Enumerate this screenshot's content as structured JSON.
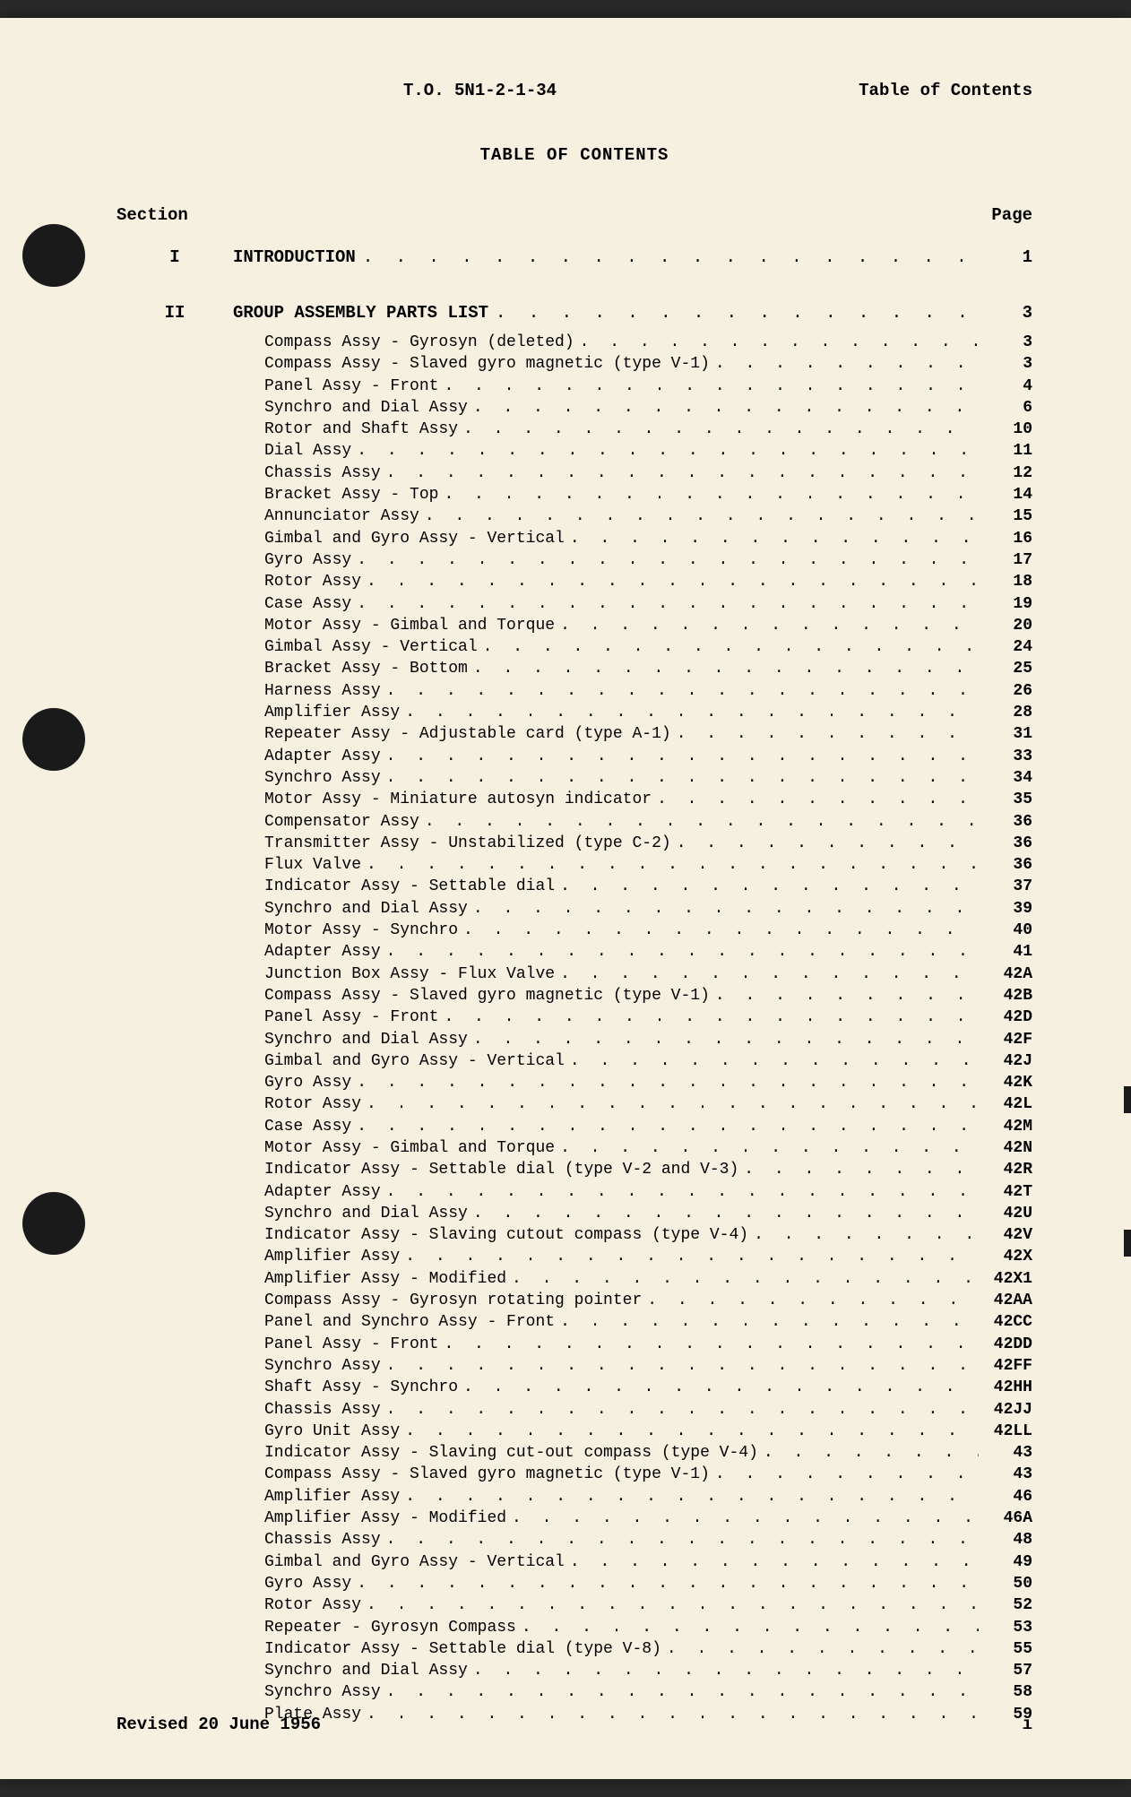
{
  "header": {
    "doc_number": "T.O. 5N1-2-1-34",
    "right_label": "Table of Contents"
  },
  "title": "TABLE OF CONTENTS",
  "column_headers": {
    "left": "Section",
    "right": "Page"
  },
  "sections": [
    {
      "num": "I",
      "title": "INTRODUCTION",
      "page": "1",
      "entries": []
    },
    {
      "num": "II",
      "title": "GROUP ASSEMBLY PARTS LIST",
      "page": "3",
      "entries": [
        {
          "title": "Compass Assy - Gyrosyn (deleted)",
          "page": "3"
        },
        {
          "title": "Compass Assy - Slaved gyro magnetic (type V-1)",
          "page": "3"
        },
        {
          "title": "Panel Assy - Front",
          "page": "4"
        },
        {
          "title": "Synchro and Dial Assy",
          "page": "6"
        },
        {
          "title": "Rotor and Shaft Assy",
          "page": "10"
        },
        {
          "title": "Dial Assy",
          "page": "11"
        },
        {
          "title": "Chassis Assy",
          "page": "12"
        },
        {
          "title": "Bracket Assy - Top",
          "page": "14"
        },
        {
          "title": "Annunciator Assy",
          "page": "15"
        },
        {
          "title": "Gimbal and Gyro Assy - Vertical",
          "page": "16"
        },
        {
          "title": "Gyro Assy",
          "page": "17"
        },
        {
          "title": "Rotor Assy",
          "page": "18"
        },
        {
          "title": "Case Assy",
          "page": "19"
        },
        {
          "title": "Motor Assy - Gimbal and Torque",
          "page": "20"
        },
        {
          "title": "Gimbal Assy - Vertical",
          "page": "24"
        },
        {
          "title": "Bracket Assy - Bottom",
          "page": "25"
        },
        {
          "title": "Harness Assy",
          "page": "26"
        },
        {
          "title": "Amplifier Assy",
          "page": "28"
        },
        {
          "title": "Repeater Assy - Adjustable card (type A-1)",
          "page": "31"
        },
        {
          "title": "Adapter Assy",
          "page": "33"
        },
        {
          "title": "Synchro Assy",
          "page": "34"
        },
        {
          "title": "Motor Assy - Miniature autosyn indicator",
          "page": "35"
        },
        {
          "title": "Compensator Assy",
          "page": "36"
        },
        {
          "title": "Transmitter Assy - Unstabilized (type C-2)",
          "page": "36"
        },
        {
          "title": "Flux Valve",
          "page": "36"
        },
        {
          "title": "Indicator Assy - Settable dial",
          "page": "37"
        },
        {
          "title": "Synchro and Dial Assy",
          "page": "39"
        },
        {
          "title": "Motor Assy - Synchro",
          "page": "40"
        },
        {
          "title": "Adapter Assy",
          "page": "41"
        },
        {
          "title": "Junction Box Assy - Flux Valve",
          "page": "42A"
        },
        {
          "title": "Compass Assy - Slaved gyro magnetic (type V-1)",
          "page": "42B"
        },
        {
          "title": "Panel Assy - Front",
          "page": "42D"
        },
        {
          "title": "Synchro and Dial Assy",
          "page": "42F"
        },
        {
          "title": "Gimbal and Gyro Assy - Vertical",
          "page": "42J"
        },
        {
          "title": "Gyro Assy",
          "page": "42K"
        },
        {
          "title": "Rotor Assy",
          "page": "42L"
        },
        {
          "title": "Case Assy",
          "page": "42M"
        },
        {
          "title": "Motor Assy - Gimbal and Torque",
          "page": "42N"
        },
        {
          "title": "Indicator Assy - Settable dial (type V-2 and V-3)",
          "page": "42R"
        },
        {
          "title": "Adapter Assy",
          "page": "42T"
        },
        {
          "title": "Synchro and Dial Assy",
          "page": "42U"
        },
        {
          "title": "Indicator Assy - Slaving cutout compass (type V-4)",
          "page": "42V"
        },
        {
          "title": "Amplifier Assy",
          "page": "42X"
        },
        {
          "title": "Amplifier Assy - Modified",
          "page": "42X1"
        },
        {
          "title": "Compass Assy - Gyrosyn rotating pointer",
          "page": "42AA"
        },
        {
          "title": "Panel and Synchro Assy - Front",
          "page": "42CC"
        },
        {
          "title": "Panel Assy - Front",
          "page": "42DD"
        },
        {
          "title": "Synchro Assy",
          "page": "42FF"
        },
        {
          "title": "Shaft Assy - Synchro",
          "page": "42HH"
        },
        {
          "title": "Chassis Assy",
          "page": "42JJ"
        },
        {
          "title": "Gyro Unit Assy",
          "page": "42LL"
        },
        {
          "title": "Indicator Assy - Slaving cut-out compass (type V-4)",
          "page": "43"
        },
        {
          "title": "Compass Assy - Slaved gyro magnetic (type V-1)",
          "page": "43"
        },
        {
          "title": "Amplifier Assy",
          "page": "46"
        },
        {
          "title": "Amplifier Assy - Modified",
          "page": "46A"
        },
        {
          "title": "Chassis Assy",
          "page": "48"
        },
        {
          "title": "Gimbal and Gyro Assy - Vertical",
          "page": "49"
        },
        {
          "title": "Gyro Assy",
          "page": "50"
        },
        {
          "title": "Rotor Assy",
          "page": "52"
        },
        {
          "title": "Repeater - Gyrosyn Compass",
          "page": "53"
        },
        {
          "title": "Indicator Assy - Settable dial (type V-8)",
          "page": "55"
        },
        {
          "title": "Synchro and Dial Assy",
          "page": "57"
        },
        {
          "title": "Synchro Assy",
          "page": "58"
        },
        {
          "title": "Plate Assy",
          "page": "59"
        }
      ]
    }
  ],
  "footer": {
    "left": "Revised 20 June 1956",
    "right": "i"
  },
  "dots_fill": ". . . . . . . . . . . . . . . . . . . . . . . . . . . . . . . . . . . . . . . . . . . . . . . . . . . . . . . . . . . . . . . . . . . . . . . ."
}
